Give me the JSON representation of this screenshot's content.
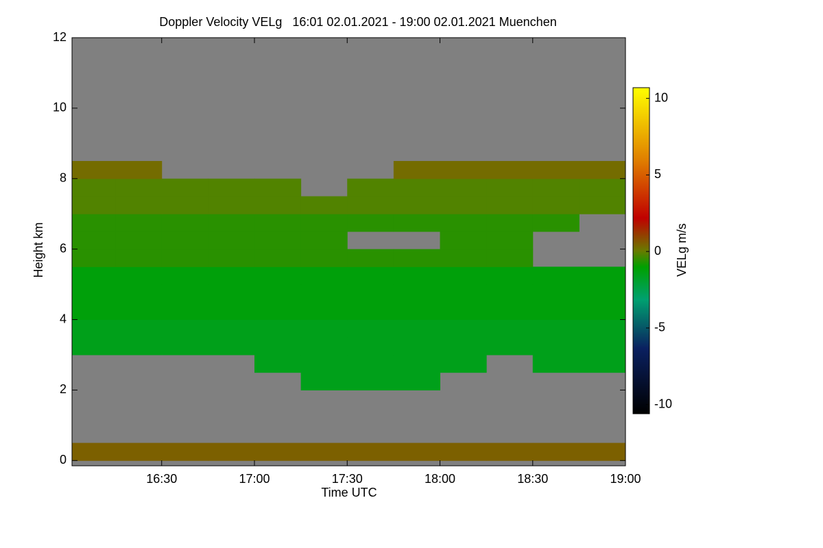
{
  "chart_data": {
    "type": "heatmap",
    "title": "Doppler Velocity VELg   16:01 02.01.2021 - 19:00 02.01.2021 Muenchen",
    "x_label": "Time UTC",
    "y_label": "Height km",
    "colorbar_label": "VELg m/s",
    "x": [
      "16:01",
      "16:15",
      "16:30",
      "16:45",
      "17:00",
      "17:15",
      "17:30",
      "17:45",
      "18:00",
      "18:15",
      "18:30",
      "18:45",
      "19:00"
    ],
    "y": [
      0,
      0.5,
      1,
      1.5,
      2,
      2.5,
      3,
      3.5,
      4,
      4.5,
      5,
      5.5,
      6,
      6.5,
      7,
      7.5,
      8,
      8.5,
      9,
      9.5,
      10,
      10.5,
      11,
      11.5,
      12
    ],
    "z": [
      [
        0.5,
        0.5,
        0.5,
        0.5,
        0.5,
        0.5,
        0.5,
        0.5,
        0.5,
        0.5,
        0.5,
        0.5
      ],
      [
        null,
        null,
        null,
        null,
        null,
        null,
        null,
        null,
        null,
        null,
        null,
        null
      ],
      [
        null,
        null,
        null,
        null,
        null,
        null,
        null,
        null,
        null,
        null,
        null,
        null
      ],
      [
        null,
        null,
        null,
        null,
        null,
        null,
        null,
        null,
        null,
        null,
        null,
        null
      ],
      [
        null,
        null,
        null,
        null,
        null,
        -1.5,
        -1.5,
        -1.5,
        null,
        null,
        null,
        null
      ],
      [
        null,
        null,
        null,
        null,
        -1.5,
        -1.5,
        -1.5,
        -1.5,
        -1.5,
        null,
        -1.5,
        -1.5
      ],
      [
        -1.5,
        -1.5,
        -1.5,
        -1.5,
        -1.5,
        -1.5,
        -1.5,
        -1.5,
        -1.5,
        -1.5,
        -1.5,
        -1.5
      ],
      [
        -1.5,
        -1.5,
        -1.5,
        -1.5,
        -1.5,
        -1.5,
        -1.5,
        -1.5,
        -1.5,
        -1.5,
        -1.5,
        -1.5
      ],
      [
        -1.2,
        -1.2,
        -1.2,
        -1.2,
        -1.2,
        -1.2,
        -1.2,
        -1.2,
        -1.2,
        -1.2,
        -1.2,
        -1.2
      ],
      [
        -1.2,
        -1.2,
        -1.2,
        -1.2,
        -1.2,
        -1.2,
        -1.2,
        -1.2,
        -1.2,
        -1.2,
        -1.2,
        -1.2
      ],
      [
        -1.2,
        -1.2,
        -1.2,
        -1.2,
        -1.2,
        -1.2,
        -1.2,
        -1.2,
        -1.2,
        -1.2,
        -1.2,
        -1.2
      ],
      [
        -0.6,
        -0.6,
        -0.6,
        -0.6,
        -0.6,
        -0.6,
        -0.6,
        -0.6,
        -0.6,
        -0.6,
        null,
        null
      ],
      [
        -0.6,
        -0.6,
        -0.6,
        -0.6,
        -0.6,
        -0.6,
        null,
        null,
        -0.6,
        -0.6,
        null,
        null
      ],
      [
        -0.6,
        -0.6,
        -0.6,
        -0.6,
        -0.6,
        -0.6,
        -0.6,
        -0.6,
        -0.6,
        -0.6,
        -0.6,
        null
      ],
      [
        -0.2,
        -0.2,
        -0.2,
        -0.2,
        -0.2,
        -0.2,
        -0.2,
        -0.2,
        -0.2,
        -0.2,
        -0.2,
        -0.2
      ],
      [
        -0.2,
        -0.2,
        -0.2,
        -0.2,
        -0.2,
        null,
        -0.2,
        -0.2,
        -0.2,
        -0.2,
        -0.2,
        -0.2
      ],
      [
        0.3,
        0.3,
        null,
        null,
        null,
        null,
        null,
        0.3,
        0.3,
        0.3,
        0.3,
        0.3
      ],
      [
        null,
        null,
        null,
        null,
        null,
        null,
        null,
        null,
        null,
        null,
        null,
        null
      ],
      [
        null,
        null,
        null,
        null,
        null,
        null,
        null,
        null,
        null,
        null,
        null,
        null
      ],
      [
        null,
        null,
        null,
        null,
        null,
        null,
        null,
        null,
        null,
        null,
        null,
        null
      ],
      [
        null,
        null,
        null,
        null,
        null,
        null,
        null,
        null,
        null,
        null,
        null,
        null
      ],
      [
        null,
        null,
        null,
        null,
        null,
        null,
        null,
        null,
        null,
        null,
        null,
        null
      ],
      [
        null,
        null,
        null,
        null,
        null,
        null,
        null,
        null,
        null,
        null,
        null,
        null
      ],
      [
        null,
        null,
        null,
        null,
        null,
        null,
        null,
        null,
        null,
        null,
        null,
        null
      ]
    ],
    "xlim": [
      "16:01",
      "19:00"
    ],
    "xticks": [
      "16:30",
      "17:00",
      "17:30",
      "18:00",
      "18:30",
      "19:00"
    ],
    "ylim": [
      -0.15,
      12
    ],
    "yticks": [
      0,
      2,
      4,
      6,
      8,
      10,
      12
    ],
    "clim": [
      -10.6,
      10.7
    ],
    "cticks": [
      -10,
      -5,
      0,
      5,
      10
    ],
    "nan_color": "#808080",
    "colorscale": [
      [
        0,
        "#000000"
      ],
      [
        0.2,
        "#0a2060"
      ],
      [
        0.35,
        "#00a070"
      ],
      [
        0.45,
        "#00a000"
      ],
      [
        0.5,
        "#6a7a00"
      ],
      [
        0.6,
        "#c00000"
      ],
      [
        0.78,
        "#e08000"
      ],
      [
        1,
        "#ffff00"
      ]
    ]
  }
}
